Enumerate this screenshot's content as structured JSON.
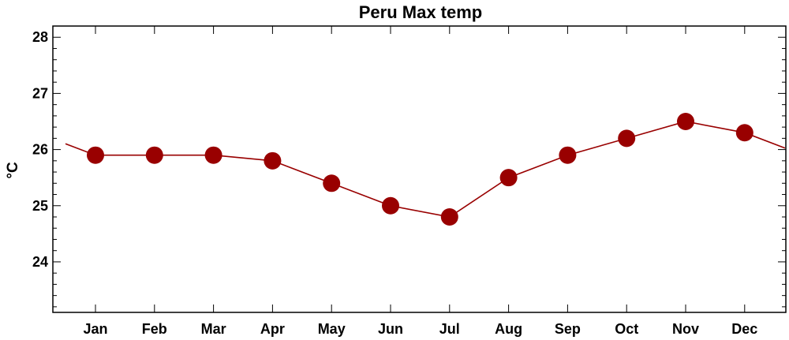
{
  "chart_data": {
    "type": "line",
    "title": "Peru Max temp",
    "xlabel": "",
    "ylabel": "°C",
    "categories": [
      "Jan",
      "Feb",
      "Mar",
      "Apr",
      "May",
      "Jun",
      "Jul",
      "Aug",
      "Sep",
      "Oct",
      "Nov",
      "Dec"
    ],
    "values": [
      25.9,
      25.9,
      25.9,
      25.8,
      25.4,
      25.0,
      24.8,
      25.5,
      25.9,
      26.2,
      26.5,
      26.3
    ],
    "ylim": [
      23.1,
      28.2
    ],
    "yticks": [
      24,
      25,
      26,
      27,
      28
    ],
    "ytick_labels": [
      "24",
      "25",
      "26",
      "27",
      "28"
    ],
    "line_extends_cyclically": true,
    "grid": false,
    "legend": "none",
    "series_color": "#990000",
    "marker_color": "#990000",
    "axis_color": "#000000",
    "background": "#ffffff"
  }
}
